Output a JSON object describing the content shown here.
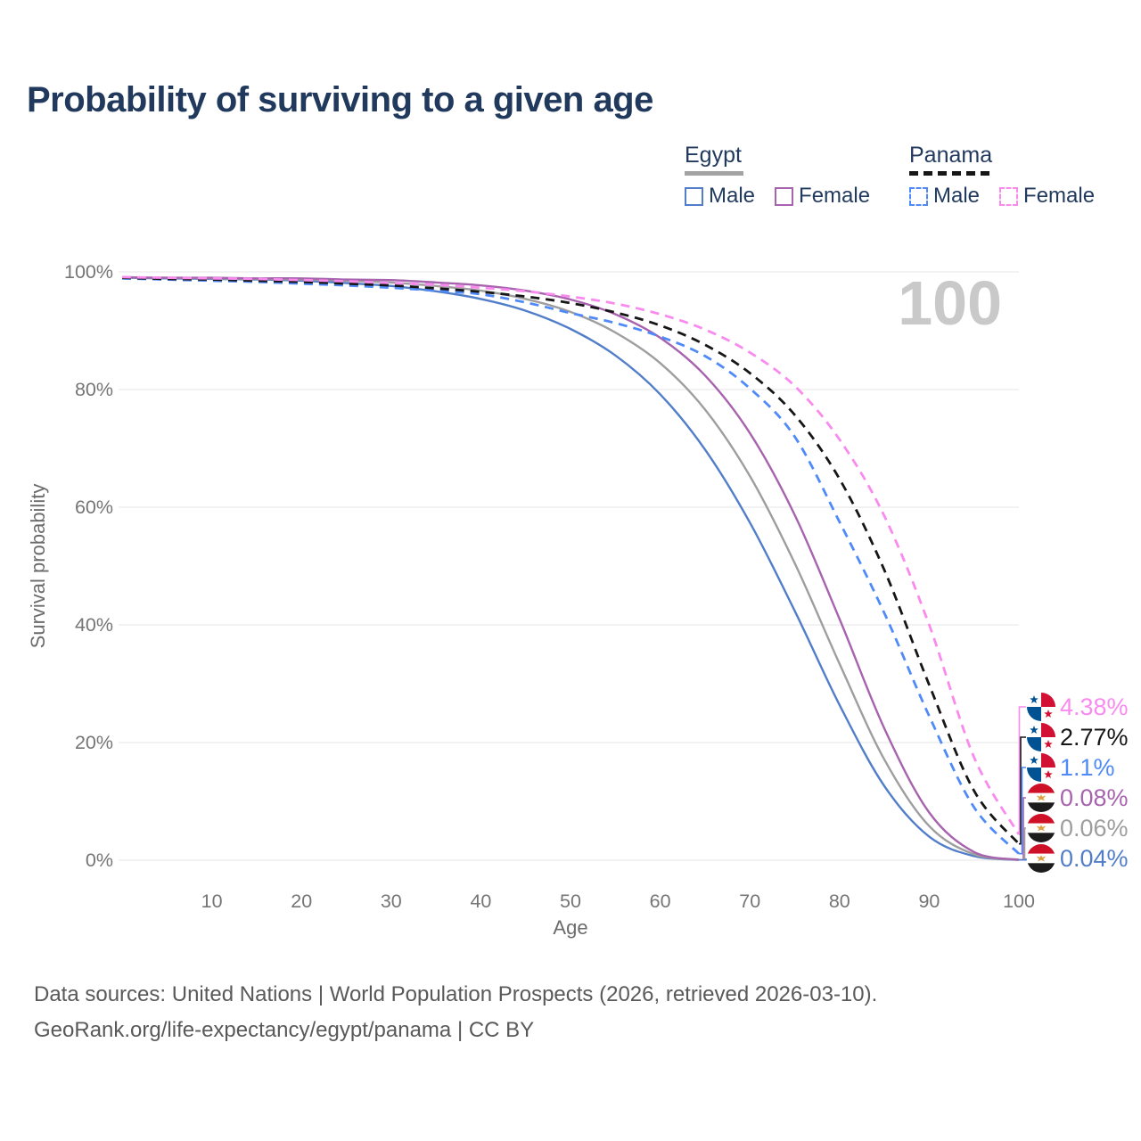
{
  "title": "Probability of surviving to a given age",
  "legend": {
    "egypt": {
      "title": "Egypt",
      "male": "Male",
      "female": "Female"
    },
    "panama": {
      "title": "Panama",
      "male": "Male",
      "female": "Female"
    }
  },
  "footer": {
    "line1": "Data sources: United Nations | World Population Prospects (2026, retrieved 2026-03-10).",
    "line2": "GeoRank.org/life-expectancy/egypt/panama | CC BY"
  },
  "colors": {
    "title_text": "#20395c",
    "legend_text": "#223a5e",
    "axis_text": "#757575",
    "axis_title_text": "#6b6b6b",
    "grid": "#eaeaea",
    "watermark": "#c9c9c9",
    "footer_text": "#595959",
    "egypt_underline": "#a3a3a3",
    "panama_underline": "#161616",
    "flag_panama_red": "#d21034",
    "flag_panama_blue": "#005293",
    "flag_egypt_red": "#ce1126",
    "flag_egypt_black": "#1c1c1c",
    "flag_egypt_gold": "#dd9e3c"
  },
  "chart_data": {
    "type": "line",
    "title": "Probability of surviving to a given age",
    "xlabel": "Age",
    "ylabel": "Survival probability",
    "xlim": [
      0,
      100
    ],
    "ylim": [
      0,
      100
    ],
    "grid": "horizontal",
    "legend_position": "top-right",
    "watermark": "100",
    "x_ticks": [
      10,
      20,
      30,
      40,
      50,
      60,
      70,
      80,
      90,
      100
    ],
    "y_ticks": [
      "0%",
      "20%",
      "40%",
      "60%",
      "80%",
      "100%"
    ],
    "x": [
      0,
      5,
      10,
      15,
      20,
      25,
      30,
      35,
      40,
      45,
      50,
      55,
      60,
      65,
      70,
      75,
      80,
      85,
      90,
      95,
      100
    ],
    "series": [
      {
        "name": "Egypt Male",
        "country": "Egypt",
        "sex": "Male",
        "style": "solid",
        "color": "#527ec9",
        "end_label": "0.04%",
        "flag": "egypt-flag-icon",
        "values": [
          99.0,
          98.9,
          98.8,
          98.7,
          98.5,
          98.1,
          97.6,
          96.7,
          95.4,
          93.4,
          90.3,
          85.8,
          79.2,
          69.8,
          57.4,
          42.4,
          26.4,
          12.6,
          4.0,
          0.7,
          0.04
        ]
      },
      {
        "name": "Egypt Both sexes",
        "country": "Egypt",
        "sex": "Both",
        "style": "solid",
        "color": "#9e9e9e",
        "end_label": "0.06%",
        "flag": "egypt-flag-icon",
        "values": [
          99.0,
          99.0,
          98.9,
          98.8,
          98.7,
          98.5,
          98.2,
          97.6,
          96.8,
          95.4,
          93.2,
          89.7,
          84.5,
          76.6,
          65.3,
          50.5,
          33.4,
          17.1,
          5.8,
          1.0,
          0.06
        ]
      },
      {
        "name": "Egypt Female",
        "country": "Egypt",
        "sex": "Female",
        "style": "solid",
        "color": "#a763ad",
        "end_label": "0.08%",
        "flag": "egypt-flag-icon",
        "values": [
          99.1,
          99.0,
          99.0,
          98.9,
          98.9,
          98.7,
          98.6,
          98.2,
          97.7,
          96.8,
          95.3,
          92.8,
          88.8,
          82.4,
          72.6,
          58.7,
          41.0,
          22.4,
          8.1,
          1.4,
          0.08
        ]
      },
      {
        "name": "Panama Male",
        "country": "Panama",
        "sex": "Male",
        "style": "dashed",
        "color": "#4f8af8",
        "end_label": "1.1%",
        "flag": "panama-flag-icon",
        "values": [
          98.9,
          98.7,
          98.5,
          98.3,
          98.0,
          97.7,
          97.3,
          96.8,
          96.2,
          94.8,
          93.0,
          91.3,
          89.0,
          85.7,
          80.2,
          72.0,
          57.5,
          42.0,
          24.5,
          9.0,
          1.1
        ]
      },
      {
        "name": "Panama Both sexes",
        "country": "Panama",
        "sex": "Both",
        "style": "dashed",
        "color": "#161616",
        "end_label": "2.77%",
        "flag": "panama-flag-icon",
        "values": [
          99.0,
          98.8,
          98.7,
          98.5,
          98.3,
          98.0,
          97.7,
          97.2,
          96.6,
          95.8,
          94.7,
          93.1,
          90.9,
          87.6,
          82.8,
          75.7,
          64.8,
          49.3,
          29.8,
          11.8,
          2.77
        ]
      },
      {
        "name": "Panama Female",
        "country": "Panama",
        "sex": "Female",
        "style": "dashed",
        "color": "#f98bee",
        "end_label": "4.38%",
        "flag": "panama-flag-icon",
        "values": [
          99.1,
          99.0,
          98.9,
          98.8,
          98.6,
          98.4,
          98.1,
          97.8,
          97.3,
          96.7,
          95.8,
          94.6,
          92.8,
          90.2,
          86.3,
          80.6,
          71.5,
          58.5,
          40.0,
          17.5,
          4.38
        ]
      }
    ]
  }
}
